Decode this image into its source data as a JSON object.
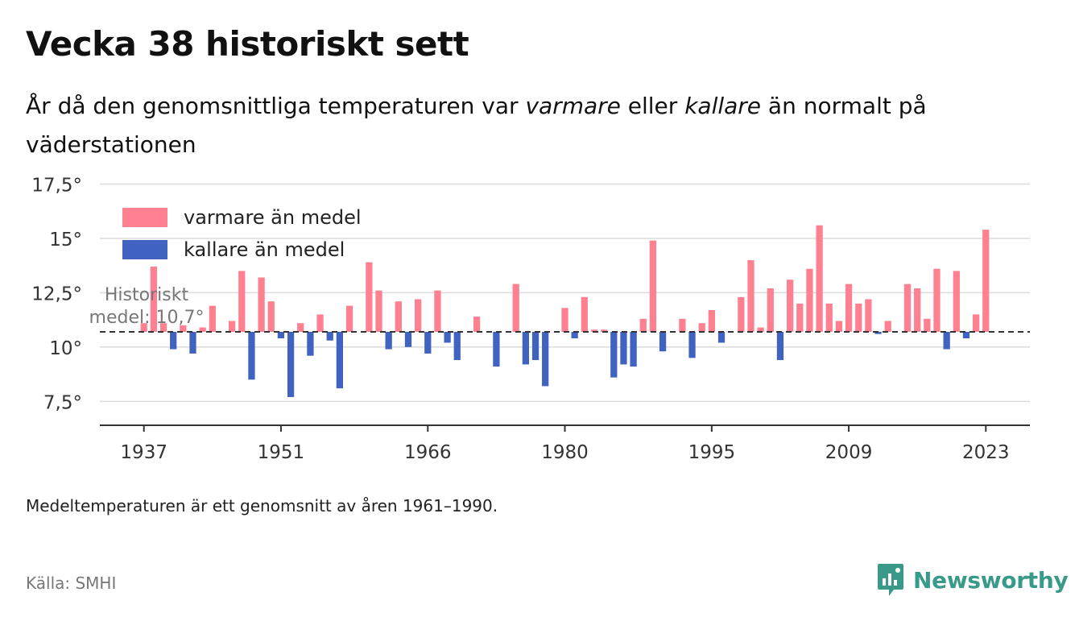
{
  "title": "Vecka 38 historiskt sett",
  "subtitle": {
    "part1": "År då den genomsnittliga temperaturen var ",
    "warm_word": "varmare",
    "part2": " eller ",
    "cold_word": "kallare",
    "part3": " än normalt på väderstationen"
  },
  "note": "Medeltemperaturen är ett genomsnitt av åren 1961–1990.",
  "source": "Källa: SMHI",
  "brand": {
    "name": "Newsworthy",
    "icon": "newsworthy-logo-icon"
  },
  "colors": {
    "warm": "#ff8090",
    "cold": "#4062c0",
    "grid": "#dcdcdc",
    "brand": "#3a9a8a"
  },
  "chart_data": {
    "type": "bar",
    "baseline": 10.7,
    "baseline_label": [
      "Historiskt",
      "medel: 10,7°"
    ],
    "legend": [
      {
        "name": "varmare än medel",
        "color": "#ff8090"
      },
      {
        "name": "kallare än medel",
        "color": "#4062c0"
      }
    ],
    "legend_position": "top-left",
    "grid": true,
    "ylim": [
      6.4,
      18.0
    ],
    "yticks": [
      7.5,
      10,
      12.5,
      15,
      17.5
    ],
    "ytick_labels": [
      "7,5°",
      "10°",
      "12,5°",
      "15°",
      "17,5°"
    ],
    "xlim": [
      1932.5,
      2027.5
    ],
    "xticks": [
      1937,
      1951,
      1966,
      1980,
      1995,
      2009,
      2023
    ],
    "xtick_labels": [
      "1937",
      "1951",
      "1966",
      "1980",
      "1995",
      "2009",
      "2023"
    ],
    "years": [
      1937,
      1938,
      1939,
      1940,
      1941,
      1942,
      1943,
      1944,
      1945,
      1946,
      1947,
      1948,
      1949,
      1950,
      1951,
      1952,
      1953,
      1954,
      1955,
      1956,
      1957,
      1958,
      1959,
      1960,
      1961,
      1962,
      1963,
      1964,
      1965,
      1966,
      1967,
      1968,
      1969,
      1970,
      1971,
      1972,
      1973,
      1974,
      1975,
      1976,
      1977,
      1978,
      1979,
      1980,
      1981,
      1982,
      1983,
      1984,
      1985,
      1986,
      1987,
      1988,
      1989,
      1990,
      1991,
      1992,
      1993,
      1994,
      1995,
      1996,
      1997,
      1998,
      1999,
      2000,
      2001,
      2002,
      2003,
      2004,
      2005,
      2006,
      2007,
      2008,
      2009,
      2010,
      2011,
      2012,
      2013,
      2014,
      2015,
      2016,
      2017,
      2018,
      2019,
      2020,
      2021,
      2022,
      2023
    ],
    "values": [
      11.1,
      13.7,
      11.1,
      9.9,
      11.0,
      9.7,
      10.9,
      11.9,
      null,
      11.2,
      13.5,
      8.5,
      13.2,
      12.1,
      10.4,
      7.7,
      11.1,
      9.6,
      11.5,
      10.3,
      8.1,
      11.9,
      null,
      13.9,
      12.6,
      9.9,
      12.1,
      10.0,
      12.2,
      9.7,
      12.6,
      10.2,
      9.4,
      null,
      11.4,
      null,
      9.1,
      null,
      12.9,
      9.2,
      9.4,
      8.2,
      null,
      11.8,
      10.4,
      12.3,
      10.8,
      10.8,
      8.6,
      9.2,
      9.1,
      11.3,
      14.9,
      9.8,
      null,
      11.3,
      9.5,
      11.1,
      11.7,
      10.2,
      null,
      12.3,
      14.0,
      10.9,
      12.7,
      9.4,
      13.1,
      12.0,
      13.6,
      15.6,
      12.0,
      11.2,
      12.9,
      12.0,
      12.2,
      10.6,
      11.2,
      null,
      12.9,
      12.7,
      11.3,
      13.6,
      9.9,
      13.5,
      10.4,
      11.5,
      15.4
    ]
  }
}
